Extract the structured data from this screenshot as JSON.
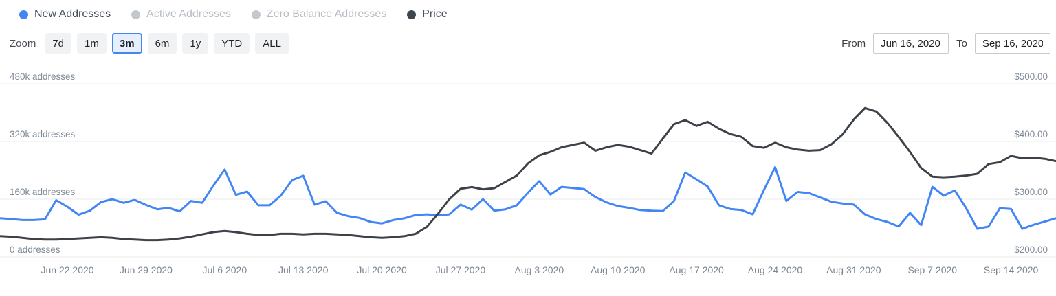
{
  "legend": {
    "items": [
      {
        "id": "new-addresses",
        "label": "New Addresses",
        "dot_color": "#4285f4",
        "text_color": "#3e4a57",
        "active": true
      },
      {
        "id": "active-addresses",
        "label": "Active Addresses",
        "dot_color": "#c2c8ce",
        "text_color": "#b7bdc4",
        "active": false
      },
      {
        "id": "zero-balance-addresses",
        "label": "Zero Balance Addresses",
        "dot_color": "#c2c8ce",
        "text_color": "#b7bdc4",
        "active": false
      },
      {
        "id": "price",
        "label": "Price",
        "dot_color": "#3f454c",
        "text_color": "#4c5662",
        "active": true
      }
    ]
  },
  "controls": {
    "zoom_label": "Zoom",
    "ranges": [
      {
        "label": "7d",
        "selected": false
      },
      {
        "label": "1m",
        "selected": false
      },
      {
        "label": "3m",
        "selected": true
      },
      {
        "label": "6m",
        "selected": false
      },
      {
        "label": "1y",
        "selected": false
      },
      {
        "label": "YTD",
        "selected": false
      },
      {
        "label": "ALL",
        "selected": false
      }
    ],
    "from_label": "From",
    "from_value": "Jun 16, 2020",
    "to_label": "To",
    "to_value": "Sep 16, 2020"
  },
  "chart_data": {
    "type": "line",
    "x_start": "Jun 16, 2020",
    "x_end": "Sep 16, 2020",
    "x_unit": "day",
    "grid": true,
    "x_tick_labels": [
      "Jun 22 2020",
      "Jun 29 2020",
      "Jul 6 2020",
      "Jul 13 2020",
      "Jul 20 2020",
      "Jul 27 2020",
      "Aug 3 2020",
      "Aug 10 2020",
      "Aug 17 2020",
      "Aug 24 2020",
      "Aug 31 2020",
      "Sep 7 2020",
      "Sep 14 2020"
    ],
    "x_tick_days": [
      6,
      13,
      20,
      27,
      34,
      41,
      48,
      55,
      62,
      69,
      76,
      83,
      90
    ],
    "left_axis": {
      "title": "addresses",
      "labels": [
        "480k addresses",
        "320k addresses",
        "160k addresses",
        "0 addresses"
      ],
      "values": [
        480000,
        320000,
        160000,
        0
      ],
      "range": [
        0,
        480000
      ]
    },
    "right_axis": {
      "title": "price",
      "labels": [
        "$500.00",
        "$400.00",
        "$300.00",
        "$200.00"
      ],
      "values": [
        500,
        400,
        300,
        200
      ],
      "range": [
        200,
        500
      ]
    },
    "series": [
      {
        "name": "New Addresses",
        "axis": "left",
        "color": "#4285f4",
        "width": 3,
        "values": [
          107000,
          105000,
          102000,
          102000,
          104000,
          157000,
          139000,
          117000,
          128000,
          152000,
          160000,
          150000,
          158000,
          144000,
          132000,
          136000,
          126000,
          155000,
          150000,
          198000,
          242000,
          172000,
          181000,
          143000,
          143000,
          170000,
          213000,
          225000,
          145000,
          154000,
          122000,
          113000,
          108000,
          97000,
          93000,
          102000,
          107000,
          116000,
          118000,
          115000,
          118000,
          145000,
          131000,
          160000,
          128000,
          132000,
          143000,
          178000,
          210000,
          173000,
          194000,
          191000,
          188000,
          166000,
          151000,
          141000,
          136000,
          130000,
          128000,
          127000,
          155000,
          234000,
          215000,
          195000,
          143000,
          133000,
          130000,
          118000,
          185000,
          249000,
          155000,
          180000,
          177000,
          165000,
          153000,
          148000,
          145000,
          118000,
          105000,
          97000,
          84000,
          122000,
          88000,
          194000,
          170000,
          184000,
          135000,
          78000,
          84000,
          135000,
          133000,
          78000,
          89000,
          98000,
          107000
        ]
      },
      {
        "name": "Price",
        "axis": "right",
        "color": "#3d4248",
        "width": 3,
        "values": [
          236,
          235,
          233,
          231,
          230,
          230,
          231,
          232,
          233,
          234,
          233,
          231,
          230,
          229,
          229,
          230,
          232,
          235,
          239,
          243,
          245,
          243,
          240,
          238,
          238,
          240,
          240,
          239,
          240,
          240,
          239,
          238,
          236,
          234,
          233,
          234,
          236,
          240,
          252,
          275,
          300,
          318,
          321,
          317,
          319,
          330,
          341,
          362,
          376,
          382,
          390,
          394,
          398,
          384,
          390,
          394,
          391,
          385,
          379,
          405,
          430,
          437,
          427,
          434,
          422,
          413,
          408,
          392,
          389,
          398,
          390,
          386,
          384,
          385,
          395,
          412,
          438,
          458,
          452,
          432,
          408,
          382,
          354,
          339,
          338,
          339,
          341,
          344,
          361,
          364,
          375,
          371,
          372,
          370,
          366
        ]
      }
    ],
    "gridline_color": "#ebebed"
  }
}
